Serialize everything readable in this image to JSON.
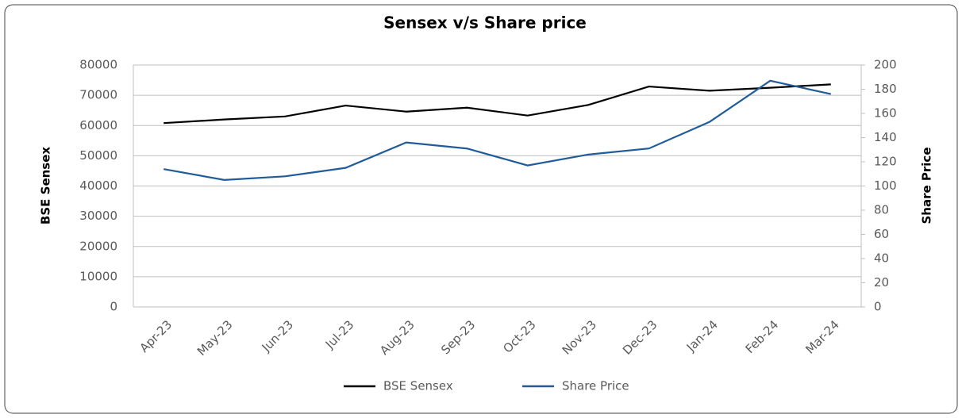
{
  "chart_data": {
    "type": "line",
    "title": "Sensex v/s Share price",
    "y_label": "BSE Sensex",
    "y2_label": "Share Price",
    "categories": [
      "Apr-23",
      "May-23",
      "Jun-23",
      "Jul-23",
      "Aug-23",
      "Sep-23",
      "Oct-23",
      "Nov-23",
      "Dec-23",
      "Jan-24",
      "Feb-24",
      "Mar-24"
    ],
    "series": [
      {
        "name": "BSE Sensex",
        "color": "#000000",
        "values": [
          60800,
          62000,
          63000,
          66600,
          64600,
          65900,
          63300,
          66800,
          72900,
          71500,
          72500,
          73600
        ]
      },
      {
        "name": "Share Price",
        "color": "#1f5c99",
        "axis": "y2",
        "values": [
          114,
          105,
          108,
          115,
          136,
          131,
          117,
          126,
          131,
          153,
          187,
          176
        ]
      }
    ],
    "ylim": [
      0,
      80000
    ],
    "yticks": [
      0,
      10000,
      20000,
      30000,
      40000,
      50000,
      60000,
      70000,
      80000
    ],
    "y2lim": [
      0,
      200
    ],
    "y2ticks": [
      0,
      20,
      40,
      60,
      80,
      100,
      120,
      140,
      160,
      180,
      200
    ],
    "grid": true,
    "legend": "bottom"
  }
}
